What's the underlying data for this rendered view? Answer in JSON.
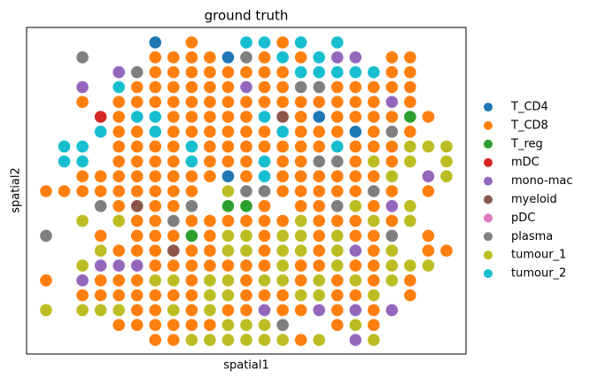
{
  "chart_data": {
    "type": "scatter",
    "title": "ground truth",
    "x_label": "spatial1",
    "y_label": "spatial2",
    "xlim": [
      -1.07,
      23.07
    ],
    "ylim": [
      -0.95,
      21.01
    ],
    "series": [
      {
        "name": "T_CD4",
        "color": "#1f77b4",
        "x": [
          6,
          10,
          15,
          17,
          10
        ],
        "y": [
          20,
          19,
          15,
          14,
          11
        ]
      },
      {
        "name": "T_CD8",
        "color": "#ff7f0e",
        "x": [
          8,
          13,
          6,
          7,
          8,
          9,
          12,
          14,
          19,
          20,
          6,
          7,
          8,
          9,
          10,
          11,
          12,
          13,
          19,
          20,
          5,
          6,
          7,
          8,
          9,
          10,
          12,
          13,
          16,
          17,
          18,
          19,
          20,
          2,
          4,
          5,
          6,
          7,
          8,
          9,
          10,
          11,
          12,
          13,
          14,
          15,
          16,
          17,
          18,
          20,
          4,
          7,
          8,
          9,
          10,
          11,
          14,
          16,
          17,
          18,
          19,
          21,
          4,
          5,
          7,
          8,
          9,
          10,
          11,
          12,
          14,
          15,
          16,
          18,
          20,
          4,
          5,
          6,
          7,
          9,
          10,
          11,
          12,
          13,
          14,
          15,
          17,
          18,
          19,
          4,
          5,
          6,
          7,
          9,
          10,
          11,
          13,
          14,
          17,
          19,
          2,
          3,
          4,
          5,
          6,
          7,
          8,
          9,
          11,
          13,
          14,
          15,
          16,
          17,
          18,
          0,
          1,
          2,
          3,
          4,
          5,
          6,
          7,
          8,
          13,
          14,
          15,
          16,
          17,
          19,
          21,
          4,
          6,
          7,
          12,
          14,
          15,
          18,
          5,
          6,
          8,
          9,
          10,
          11,
          12,
          13,
          15,
          16,
          17,
          19,
          3,
          5,
          6,
          7,
          9,
          12,
          15,
          17,
          18,
          21,
          4,
          5,
          6,
          8,
          9,
          12,
          15,
          18,
          21,
          22,
          6,
          7,
          8,
          9,
          10,
          11,
          12,
          14,
          15,
          17,
          18,
          0,
          3,
          4,
          5,
          8,
          11,
          14,
          16,
          18,
          20,
          2,
          3,
          4,
          5,
          6,
          7,
          8,
          11,
          12,
          13,
          16,
          17,
          20,
          5,
          6,
          8,
          10,
          11,
          13,
          14,
          16,
          18,
          4,
          5,
          6,
          7,
          8,
          9,
          16,
          18,
          6,
          7,
          14
        ],
        "y": [
          20,
          20,
          19,
          19,
          19,
          19,
          19,
          19,
          19,
          19,
          18,
          18,
          18,
          18,
          18,
          18,
          18,
          18,
          18,
          18,
          17,
          17,
          17,
          17,
          17,
          17,
          17,
          17,
          17,
          17,
          17,
          17,
          17,
          16,
          16,
          16,
          16,
          16,
          16,
          16,
          16,
          16,
          16,
          16,
          16,
          16,
          16,
          16,
          16,
          16,
          15,
          15,
          15,
          15,
          15,
          15,
          15,
          15,
          15,
          15,
          15,
          15,
          14,
          14,
          14,
          14,
          14,
          14,
          14,
          14,
          14,
          14,
          14,
          14,
          14,
          13,
          13,
          13,
          13,
          13,
          13,
          13,
          13,
          13,
          13,
          13,
          13,
          13,
          13,
          12,
          12,
          12,
          12,
          12,
          12,
          12,
          12,
          12,
          12,
          12,
          11,
          11,
          11,
          11,
          11,
          11,
          11,
          11,
          11,
          11,
          11,
          11,
          11,
          11,
          11,
          10,
          10,
          10,
          10,
          10,
          10,
          10,
          10,
          10,
          10,
          10,
          10,
          10,
          10,
          10,
          10,
          9,
          9,
          9,
          9,
          9,
          9,
          9,
          8,
          8,
          8,
          8,
          8,
          8,
          8,
          8,
          8,
          8,
          8,
          8,
          7,
          7,
          7,
          7,
          7,
          7,
          7,
          7,
          7,
          7,
          6,
          6,
          6,
          6,
          6,
          6,
          6,
          6,
          6,
          6,
          5,
          5,
          5,
          5,
          5,
          5,
          5,
          5,
          5,
          5,
          5,
          4,
          4,
          4,
          4,
          4,
          4,
          4,
          4,
          4,
          4,
          3,
          3,
          3,
          3,
          3,
          3,
          3,
          3,
          3,
          3,
          3,
          3,
          3,
          2,
          2,
          2,
          2,
          2,
          2,
          2,
          2,
          2,
          1,
          1,
          1,
          1,
          1,
          1,
          1,
          1,
          0,
          0,
          0
        ]
      },
      {
        "name": "T_reg",
        "color": "#2ca02c",
        "x": [
          20,
          10,
          11,
          8
        ],
        "y": [
          15,
          9,
          9,
          7
        ]
      },
      {
        "name": "mDC",
        "color": "#d62728",
        "x": [
          3
        ],
        "y": [
          15
        ]
      },
      {
        "name": "mono-mac",
        "color": "#9467bd",
        "x": [
          16,
          17,
          4,
          2,
          11,
          19,
          21,
          19,
          17,
          3,
          4,
          5,
          2,
          12,
          15,
          17,
          19,
          17
        ],
        "y": [
          19,
          19,
          18,
          17,
          17,
          16,
          11,
          9,
          6,
          5,
          5,
          5,
          4,
          2,
          2,
          2,
          2,
          0
        ]
      },
      {
        "name": "myeloid",
        "color": "#8c564b",
        "x": [
          13,
          5,
          7
        ],
        "y": [
          15,
          9,
          6
        ]
      },
      {
        "name": "pDC",
        "color": "#e377c2",
        "x": [],
        "y": []
      },
      {
        "name": "plasma",
        "color": "#7f7f7f",
        "x": [
          2,
          11,
          5,
          14,
          15,
          19,
          15,
          16,
          11,
          12,
          18,
          3,
          8,
          16,
          7,
          0,
          19,
          13
        ],
        "y": [
          19,
          19,
          18,
          17,
          17,
          14,
          12,
          12,
          10,
          10,
          10,
          9,
          9,
          9,
          8,
          7,
          7,
          1
        ]
      },
      {
        "name": "tumour_1",
        "color": "#bcbd22",
        "x": [
          20,
          21,
          22,
          18,
          20,
          22,
          19,
          22,
          10,
          17,
          20,
          2,
          4,
          14,
          18,
          20,
          10,
          11,
          13,
          14,
          16,
          3,
          10,
          11,
          13,
          14,
          16,
          19,
          2,
          13,
          16,
          19,
          20,
          21,
          6,
          7,
          9,
          10,
          12,
          13,
          15,
          17,
          19,
          9,
          10,
          14,
          15,
          18,
          0,
          2,
          3,
          4,
          7,
          9,
          10,
          11,
          12,
          17,
          8,
          9,
          10,
          11,
          12,
          13,
          15,
          18
        ],
        "y": [
          13,
          13,
          13,
          12,
          12,
          12,
          11,
          11,
          10,
          9,
          9,
          8,
          8,
          8,
          8,
          8,
          7,
          7,
          7,
          7,
          7,
          6,
          6,
          6,
          6,
          6,
          6,
          6,
          5,
          5,
          5,
          5,
          5,
          5,
          4,
          4,
          4,
          4,
          4,
          4,
          4,
          4,
          4,
          3,
          3,
          3,
          3,
          3,
          2,
          2,
          2,
          2,
          2,
          2,
          1,
          1,
          1,
          1,
          0,
          0,
          0,
          0,
          0,
          0,
          0,
          0
        ]
      },
      {
        "name": "tumour_2",
        "color": "#17becf",
        "x": [
          11,
          12,
          14,
          16,
          13,
          15,
          14,
          15,
          16,
          17,
          18,
          4,
          5,
          6,
          12,
          3,
          6,
          13,
          1,
          2,
          8,
          16,
          1,
          2,
          8,
          12,
          12
        ],
        "y": [
          20,
          20,
          20,
          20,
          19,
          19,
          18,
          18,
          18,
          18,
          18,
          17,
          15,
          15,
          15,
          14,
          14,
          14,
          13,
          13,
          13,
          13,
          12,
          12,
          12,
          12,
          11
        ]
      }
    ]
  }
}
